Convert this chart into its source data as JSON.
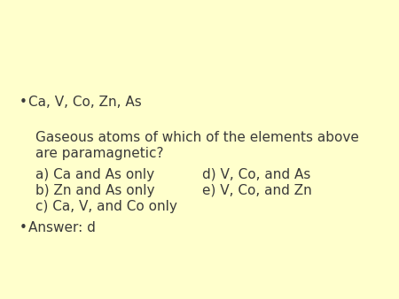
{
  "background_color": "#FFFFCC",
  "text_color": "#3a3a3a",
  "bullet1": "Ca, V, Co, Zn, As",
  "question_line1": "  Gaseous atoms of which of the elements above",
  "question_line2": "  are paramagnetic?",
  "option_a": "  a) Ca and As only",
  "option_b": "  b) Zn and As only",
  "option_c": "  c) Ca, V, and Co only",
  "option_d": "d) V, Co, and As",
  "option_e": "e) V, Co, and Zn",
  "bullet2_text": "Answer: d",
  "fontsize": 11.0,
  "fig_width": 4.5,
  "fig_height": 3.38,
  "dpi": 100
}
